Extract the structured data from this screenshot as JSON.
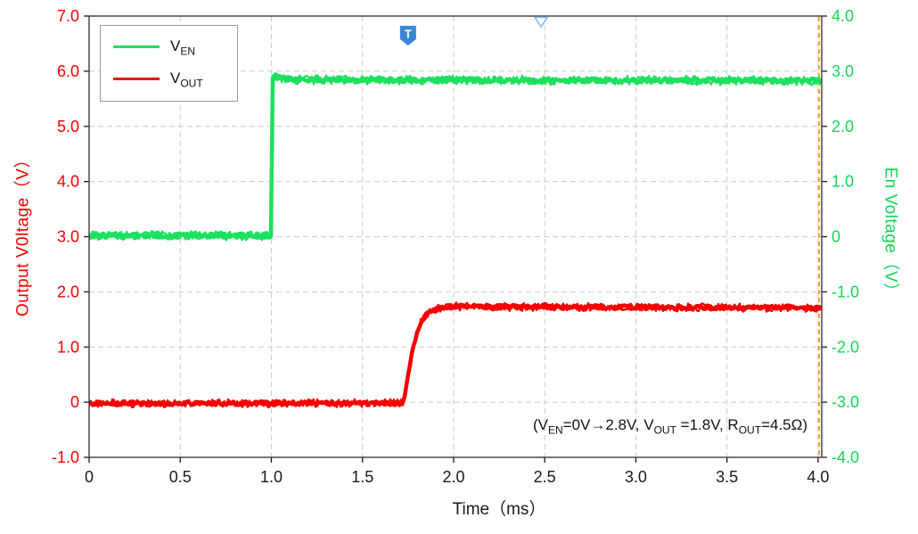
{
  "figure": {
    "background": "#ffffff"
  },
  "axes": {
    "left": {
      "color": "#f40000"
    },
    "right": {
      "color": "#12d656"
    },
    "bottom": {
      "color": "#1a1a1a"
    },
    "grid_color": "#cccccc",
    "border_color": "#3c3c3c"
  },
  "legend": {
    "entries": [
      {
        "main": "V",
        "sub": "EN",
        "color": "#1de05f"
      },
      {
        "main": "V",
        "sub": "OUT",
        "color": "#f40000"
      }
    ]
  },
  "chart_data": {
    "type": "line",
    "title": "",
    "xlabel": "Time（ms）",
    "ylabel_left": "Output V0ltage（V）",
    "ylabel_right": "En Voltage（V）",
    "xlim": [
      0,
      4.02
    ],
    "ylim_left": [
      -1.0,
      7.0
    ],
    "ylim_right": [
      -4.0,
      4.0
    ],
    "grid": true,
    "legend_position": "upper-left",
    "x_ticks": {
      "values": [
        0,
        0.5,
        1.0,
        1.5,
        2.0,
        2.5,
        3.0,
        3.5,
        4.0
      ],
      "labels": [
        "0",
        "0.5",
        "1.0",
        "1.5",
        "2.0",
        "2.5",
        "3.0",
        "3.5",
        "4.0"
      ]
    },
    "y_ticks_left": {
      "values": [
        7,
        6,
        5,
        4,
        3,
        2,
        1,
        0,
        -1
      ],
      "labels": [
        "7.0",
        "6.0",
        "5.0",
        "4.0",
        "3.0",
        "2.0",
        "1.0",
        "0",
        "-1.0"
      ]
    },
    "y_ticks_right": {
      "values": [
        4,
        3,
        2,
        1,
        0,
        -1,
        -2,
        -3,
        -4
      ],
      "labels": [
        "4.0",
        "3.0",
        "2.0",
        "1.0",
        "0",
        "-1.0",
        "-2.0",
        "-3.0",
        "-4.0"
      ]
    },
    "series": [
      {
        "name": "V_EN",
        "axis": "right",
        "color": "#1de05f",
        "noise_v": 0.085,
        "points": [
          [
            0,
            0.02
          ],
          [
            0.999,
            0.02
          ],
          [
            1.001,
            2.92
          ],
          [
            1.05,
            2.86
          ],
          [
            1.3,
            2.84
          ],
          [
            4.02,
            2.83
          ]
        ]
      },
      {
        "name": "V_OUT",
        "axis": "left",
        "color": "#f40000",
        "noise_v": 0.075,
        "points": [
          [
            0,
            -0.02
          ],
          [
            1.728,
            -0.02
          ],
          [
            1.732,
            0.1
          ],
          [
            1.76,
            0.7
          ],
          [
            1.79,
            1.15
          ],
          [
            1.82,
            1.45
          ],
          [
            1.86,
            1.62
          ],
          [
            1.92,
            1.7
          ],
          [
            2.0,
            1.74
          ],
          [
            2.15,
            1.73
          ],
          [
            4.02,
            1.71
          ]
        ]
      }
    ],
    "markers": {
      "trigger": {
        "x": 1.75,
        "label": "T",
        "color": "#3a86d4"
      },
      "top_marker": {
        "x": 2.48,
        "shape": "triangle-down",
        "color": "#85bdf2"
      },
      "cursor_line": {
        "x": 4.005,
        "color": "#fa9d1e"
      }
    },
    "annotation": {
      "p1": "(V",
      "s1": "EN",
      "p2": "=0V→2.8V, V",
      "s2": "OUT",
      "p3": " =1.8V, R",
      "s3": "OUT",
      "p4": "=4.5Ω)"
    }
  }
}
